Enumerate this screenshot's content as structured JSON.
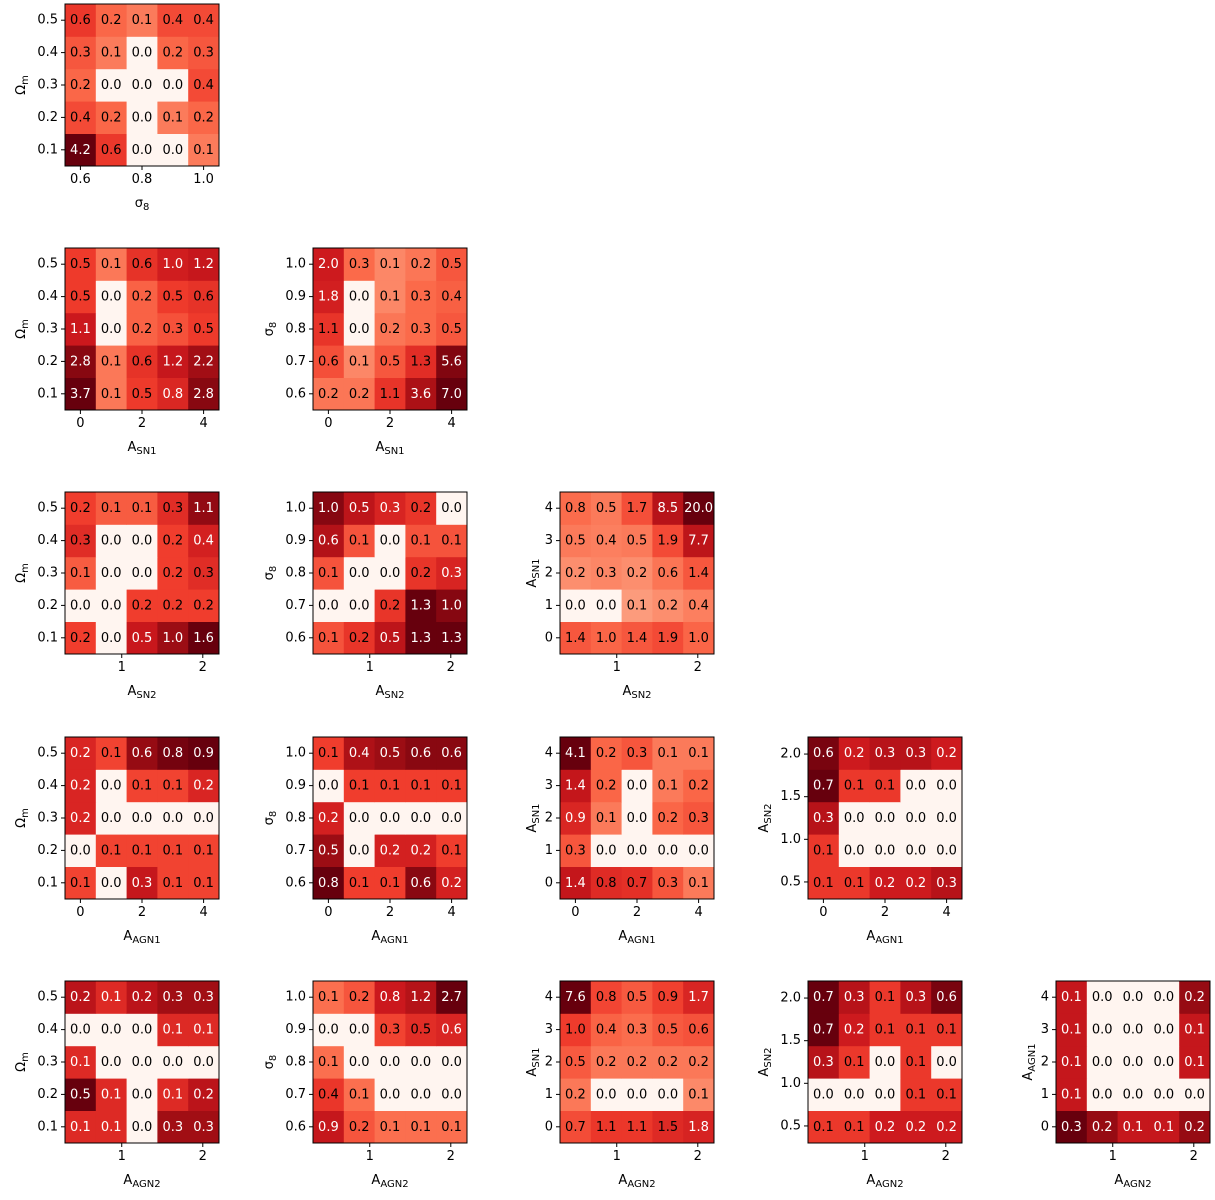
{
  "colormap": {
    "name": "Reds",
    "stops": [
      "#fff5f0",
      "#fee0d2",
      "#fcbba1",
      "#fc9272",
      "#fb6a4a",
      "#ef3b2c",
      "#cb181d",
      "#a50f15",
      "#67000d"
    ]
  },
  "chart_data": [
    {
      "type": "heatmap",
      "row": 0,
      "col": 0,
      "xlabel": {
        "text": "σ",
        "sub": "8"
      },
      "ylabel": {
        "text": "Ω",
        "sub": "m"
      },
      "xticks": [
        "0.6",
        "0.8",
        "1.0"
      ],
      "yticks": [
        "0.1",
        "0.2",
        "0.3",
        "0.4",
        "0.5"
      ],
      "values": [
        [
          4.2,
          0.6,
          0.0,
          0.0,
          0.1
        ],
        [
          0.4,
          0.2,
          0.0,
          0.1,
          0.2
        ],
        [
          0.2,
          0.0,
          0.0,
          0.0,
          0.4
        ],
        [
          0.3,
          0.1,
          0.0,
          0.2,
          0.3
        ],
        [
          0.6,
          0.2,
          0.1,
          0.4,
          0.4
        ]
      ]
    },
    {
      "type": "heatmap",
      "row": 1,
      "col": 0,
      "xlabel": {
        "text": "A",
        "sub": "SN1"
      },
      "ylabel": {
        "text": "Ω",
        "sub": "m"
      },
      "xticks": [
        "0",
        "2",
        "4"
      ],
      "yticks": [
        "0.1",
        "0.2",
        "0.3",
        "0.4",
        "0.5"
      ],
      "values": [
        [
          3.7,
          0.1,
          0.5,
          0.8,
          2.8
        ],
        [
          2.8,
          0.1,
          0.6,
          1.2,
          2.2
        ],
        [
          1.1,
          0.0,
          0.2,
          0.3,
          0.5
        ],
        [
          0.5,
          0.0,
          0.2,
          0.5,
          0.6
        ],
        [
          0.5,
          0.1,
          0.6,
          1.0,
          1.2
        ]
      ]
    },
    {
      "type": "heatmap",
      "row": 1,
      "col": 1,
      "xlabel": {
        "text": "A",
        "sub": "SN1"
      },
      "ylabel": {
        "text": "σ",
        "sub": "8"
      },
      "xticks": [
        "0",
        "2",
        "4"
      ],
      "yticks": [
        "0.6",
        "0.7",
        "0.8",
        "0.9",
        "1.0"
      ],
      "values": [
        [
          0.2,
          0.2,
          1.1,
          3.6,
          7.0
        ],
        [
          0.6,
          0.1,
          0.5,
          1.3,
          5.6
        ],
        [
          1.1,
          0.0,
          0.2,
          0.3,
          0.5
        ],
        [
          1.8,
          0.0,
          0.1,
          0.3,
          0.4
        ],
        [
          2.0,
          0.3,
          0.1,
          0.2,
          0.5
        ]
      ]
    },
    {
      "type": "heatmap",
      "row": 2,
      "col": 0,
      "xlabel": {
        "text": "A",
        "sub": "SN2"
      },
      "ylabel": {
        "text": "Ω",
        "sub": "m"
      },
      "xticks": [
        "1",
        "2"
      ],
      "yticks": [
        "0.1",
        "0.2",
        "0.3",
        "0.4",
        "0.5"
      ],
      "values": [
        [
          0.2,
          0.0,
          0.5,
          1.0,
          1.6
        ],
        [
          0.0,
          0.0,
          0.2,
          0.2,
          0.2
        ],
        [
          0.1,
          0.0,
          0.0,
          0.2,
          0.3
        ],
        [
          0.3,
          0.0,
          0.0,
          0.2,
          0.4
        ],
        [
          0.2,
          0.1,
          0.1,
          0.3,
          1.1
        ]
      ]
    },
    {
      "type": "heatmap",
      "row": 2,
      "col": 1,
      "xlabel": {
        "text": "A",
        "sub": "SN2"
      },
      "ylabel": {
        "text": "σ",
        "sub": "8"
      },
      "xticks": [
        "1",
        "2"
      ],
      "yticks": [
        "0.6",
        "0.7",
        "0.8",
        "0.9",
        "1.0"
      ],
      "values": [
        [
          0.1,
          0.2,
          0.5,
          1.3,
          1.3
        ],
        [
          0.0,
          0.0,
          0.2,
          1.3,
          1.0
        ],
        [
          0.1,
          0.0,
          0.0,
          0.2,
          0.3
        ],
        [
          0.6,
          0.1,
          0.0,
          0.1,
          0.1
        ],
        [
          1.0,
          0.5,
          0.3,
          0.2,
          0.0
        ]
      ]
    },
    {
      "type": "heatmap",
      "row": 2,
      "col": 2,
      "xlabel": {
        "text": "A",
        "sub": "SN2"
      },
      "ylabel": {
        "text": "A",
        "sub": "SN1"
      },
      "xticks": [
        "1",
        "2"
      ],
      "yticks": [
        "0",
        "1",
        "2",
        "3",
        "4"
      ],
      "values": [
        [
          1.4,
          1.0,
          1.4,
          1.9,
          1.0
        ],
        [
          0.0,
          0.0,
          0.1,
          0.2,
          0.4
        ],
        [
          0.2,
          0.3,
          0.2,
          0.6,
          1.4
        ],
        [
          0.5,
          0.4,
          0.5,
          1.9,
          7.7
        ],
        [
          0.8,
          0.5,
          1.7,
          8.5,
          20.0
        ]
      ]
    },
    {
      "type": "heatmap",
      "row": 3,
      "col": 0,
      "xlabel": {
        "text": "A",
        "sub": "AGN1"
      },
      "ylabel": {
        "text": "Ω",
        "sub": "m"
      },
      "xticks": [
        "0",
        "2",
        "4"
      ],
      "yticks": [
        "0.1",
        "0.2",
        "0.3",
        "0.4",
        "0.5"
      ],
      "values": [
        [
          0.1,
          0.0,
          0.3,
          0.1,
          0.1
        ],
        [
          0.0,
          0.1,
          0.1,
          0.1,
          0.1
        ],
        [
          0.2,
          0.0,
          0.0,
          0.0,
          0.0
        ],
        [
          0.2,
          0.0,
          0.1,
          0.1,
          0.2
        ],
        [
          0.2,
          0.1,
          0.6,
          0.8,
          0.9
        ]
      ]
    },
    {
      "type": "heatmap",
      "row": 3,
      "col": 1,
      "xlabel": {
        "text": "A",
        "sub": "AGN1"
      },
      "ylabel": {
        "text": "σ",
        "sub": "8"
      },
      "xticks": [
        "0",
        "2",
        "4"
      ],
      "yticks": [
        "0.6",
        "0.7",
        "0.8",
        "0.9",
        "1.0"
      ],
      "values": [
        [
          0.8,
          0.1,
          0.1,
          0.6,
          0.2
        ],
        [
          0.5,
          0.0,
          0.2,
          0.2,
          0.1
        ],
        [
          0.2,
          0.0,
          0.0,
          0.0,
          0.0
        ],
        [
          0.0,
          0.1,
          0.1,
          0.1,
          0.1
        ],
        [
          0.1,
          0.4,
          0.5,
          0.6,
          0.6
        ]
      ]
    },
    {
      "type": "heatmap",
      "row": 3,
      "col": 2,
      "xlabel": {
        "text": "A",
        "sub": "AGN1"
      },
      "ylabel": {
        "text": "A",
        "sub": "SN1"
      },
      "xticks": [
        "0",
        "2",
        "4"
      ],
      "yticks": [
        "0",
        "1",
        "2",
        "3",
        "4"
      ],
      "values": [
        [
          1.4,
          0.8,
          0.7,
          0.3,
          0.1
        ],
        [
          0.3,
          0.0,
          0.0,
          0.0,
          0.0
        ],
        [
          0.9,
          0.1,
          0.0,
          0.2,
          0.3
        ],
        [
          1.4,
          0.2,
          0.0,
          0.1,
          0.2
        ],
        [
          4.1,
          0.2,
          0.3,
          0.1,
          0.1
        ]
      ]
    },
    {
      "type": "heatmap",
      "row": 3,
      "col": 3,
      "xlabel": {
        "text": "A",
        "sub": "AGN1"
      },
      "ylabel": {
        "text": "A",
        "sub": "SN2"
      },
      "xticks": [
        "0",
        "2",
        "4"
      ],
      "yticks": [
        "0.5",
        "1.0",
        "1.5",
        "2.0"
      ],
      "values": [
        [
          0.1,
          0.1,
          0.2,
          0.2,
          0.3
        ],
        [
          0.1,
          0.0,
          0.0,
          0.0,
          0.0
        ],
        [
          0.3,
          0.0,
          0.0,
          0.0,
          0.0
        ],
        [
          0.7,
          0.1,
          0.1,
          0.0,
          0.0
        ],
        [
          0.6,
          0.2,
          0.3,
          0.3,
          0.2
        ]
      ]
    },
    {
      "type": "heatmap",
      "row": 4,
      "col": 0,
      "xlabel": {
        "text": "A",
        "sub": "AGN2"
      },
      "ylabel": {
        "text": "Ω",
        "sub": "m"
      },
      "xticks": [
        "1",
        "2"
      ],
      "yticks": [
        "0.1",
        "0.2",
        "0.3",
        "0.4",
        "0.5"
      ],
      "values": [
        [
          0.1,
          0.1,
          0.0,
          0.3,
          0.3
        ],
        [
          0.5,
          0.1,
          0.0,
          0.1,
          0.2
        ],
        [
          0.1,
          0.0,
          0.0,
          0.0,
          0.0
        ],
        [
          0.0,
          0.0,
          0.0,
          0.1,
          0.1
        ],
        [
          0.2,
          0.1,
          0.2,
          0.3,
          0.3
        ]
      ]
    },
    {
      "type": "heatmap",
      "row": 4,
      "col": 1,
      "xlabel": {
        "text": "A",
        "sub": "AGN2"
      },
      "ylabel": {
        "text": "σ",
        "sub": "8"
      },
      "xticks": [
        "1",
        "2"
      ],
      "yticks": [
        "0.6",
        "0.7",
        "0.8",
        "0.9",
        "1.0"
      ],
      "values": [
        [
          0.9,
          0.2,
          0.1,
          0.1,
          0.1
        ],
        [
          0.4,
          0.1,
          0.0,
          0.0,
          0.0
        ],
        [
          0.1,
          0.0,
          0.0,
          0.0,
          0.0
        ],
        [
          0.0,
          0.0,
          0.3,
          0.5,
          0.6
        ],
        [
          0.1,
          0.2,
          0.8,
          1.2,
          2.7
        ]
      ]
    },
    {
      "type": "heatmap",
      "row": 4,
      "col": 2,
      "xlabel": {
        "text": "A",
        "sub": "AGN2"
      },
      "ylabel": {
        "text": "A",
        "sub": "SN1"
      },
      "xticks": [
        "1",
        "2"
      ],
      "yticks": [
        "0",
        "1",
        "2",
        "3",
        "4"
      ],
      "values": [
        [
          0.7,
          1.1,
          1.1,
          1.5,
          1.8
        ],
        [
          0.2,
          0.0,
          0.0,
          0.0,
          0.1
        ],
        [
          0.5,
          0.2,
          0.2,
          0.2,
          0.2
        ],
        [
          1.0,
          0.4,
          0.3,
          0.5,
          0.6
        ],
        [
          7.6,
          0.8,
          0.5,
          0.9,
          1.7
        ]
      ]
    },
    {
      "type": "heatmap",
      "row": 4,
      "col": 3,
      "xlabel": {
        "text": "A",
        "sub": "AGN2"
      },
      "ylabel": {
        "text": "A",
        "sub": "SN2"
      },
      "xticks": [
        "1",
        "2"
      ],
      "yticks": [
        "0.5",
        "1.0",
        "1.5",
        "2.0"
      ],
      "values": [
        [
          0.1,
          0.1,
          0.2,
          0.2,
          0.2
        ],
        [
          0.0,
          0.0,
          0.0,
          0.1,
          0.1
        ],
        [
          0.3,
          0.1,
          0.0,
          0.1,
          0.0
        ],
        [
          0.7,
          0.2,
          0.1,
          0.1,
          0.1
        ],
        [
          0.7,
          0.3,
          0.1,
          0.3,
          0.6
        ]
      ]
    },
    {
      "type": "heatmap",
      "row": 4,
      "col": 4,
      "xlabel": {
        "text": "A",
        "sub": "AGN2"
      },
      "ylabel": {
        "text": "A",
        "sub": "AGN1"
      },
      "xticks": [
        "1",
        "2"
      ],
      "yticks": [
        "0",
        "1",
        "2",
        "3",
        "4"
      ],
      "values": [
        [
          0.3,
          0.2,
          0.1,
          0.1,
          0.2
        ],
        [
          0.1,
          0.0,
          0.0,
          0.0,
          0.0
        ],
        [
          0.1,
          0.0,
          0.0,
          0.0,
          0.1
        ],
        [
          0.1,
          0.0,
          0.0,
          0.0,
          0.1
        ],
        [
          0.1,
          0.0,
          0.0,
          0.0,
          0.2
        ]
      ]
    }
  ]
}
